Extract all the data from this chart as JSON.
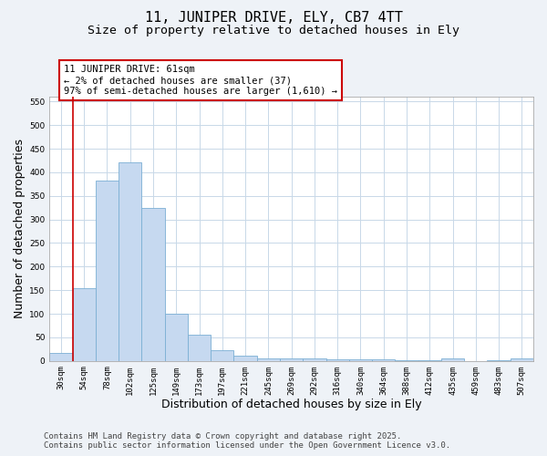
{
  "title1": "11, JUNIPER DRIVE, ELY, CB7 4TT",
  "title2": "Size of property relative to detached houses in Ely",
  "xlabel": "Distribution of detached houses by size in Ely",
  "ylabel": "Number of detached properties",
  "categories": [
    "30sqm",
    "54sqm",
    "78sqm",
    "102sqm",
    "125sqm",
    "149sqm",
    "173sqm",
    "197sqm",
    "221sqm",
    "245sqm",
    "269sqm",
    "292sqm",
    "316sqm",
    "340sqm",
    "364sqm",
    "388sqm",
    "412sqm",
    "435sqm",
    "459sqm",
    "483sqm",
    "507sqm"
  ],
  "values": [
    17,
    155,
    383,
    422,
    325,
    100,
    55,
    22,
    11,
    5,
    5,
    5,
    3,
    3,
    3,
    2,
    2,
    5,
    0,
    2,
    5
  ],
  "bar_color": "#c6d9f0",
  "bar_edge_color": "#7bafd4",
  "red_line_index": 1,
  "ylim": [
    0,
    560
  ],
  "yticks": [
    0,
    50,
    100,
    150,
    200,
    250,
    300,
    350,
    400,
    450,
    500,
    550
  ],
  "annotation_text": "11 JUNIPER DRIVE: 61sqm\n← 2% of detached houses are smaller (37)\n97% of semi-detached houses are larger (1,610) →",
  "annotation_box_color": "#ffffff",
  "annotation_box_edge": "#cc0000",
  "footnote1": "Contains HM Land Registry data © Crown copyright and database right 2025.",
  "footnote2": "Contains public sector information licensed under the Open Government Licence v3.0.",
  "bg_color": "#eef2f7",
  "plot_bg_color": "#ffffff",
  "grid_color": "#c8d8e8",
  "title1_fontsize": 11,
  "title2_fontsize": 9.5,
  "tick_fontsize": 6.5,
  "label_fontsize": 9,
  "annot_fontsize": 7.5,
  "footnote_fontsize": 6.5
}
